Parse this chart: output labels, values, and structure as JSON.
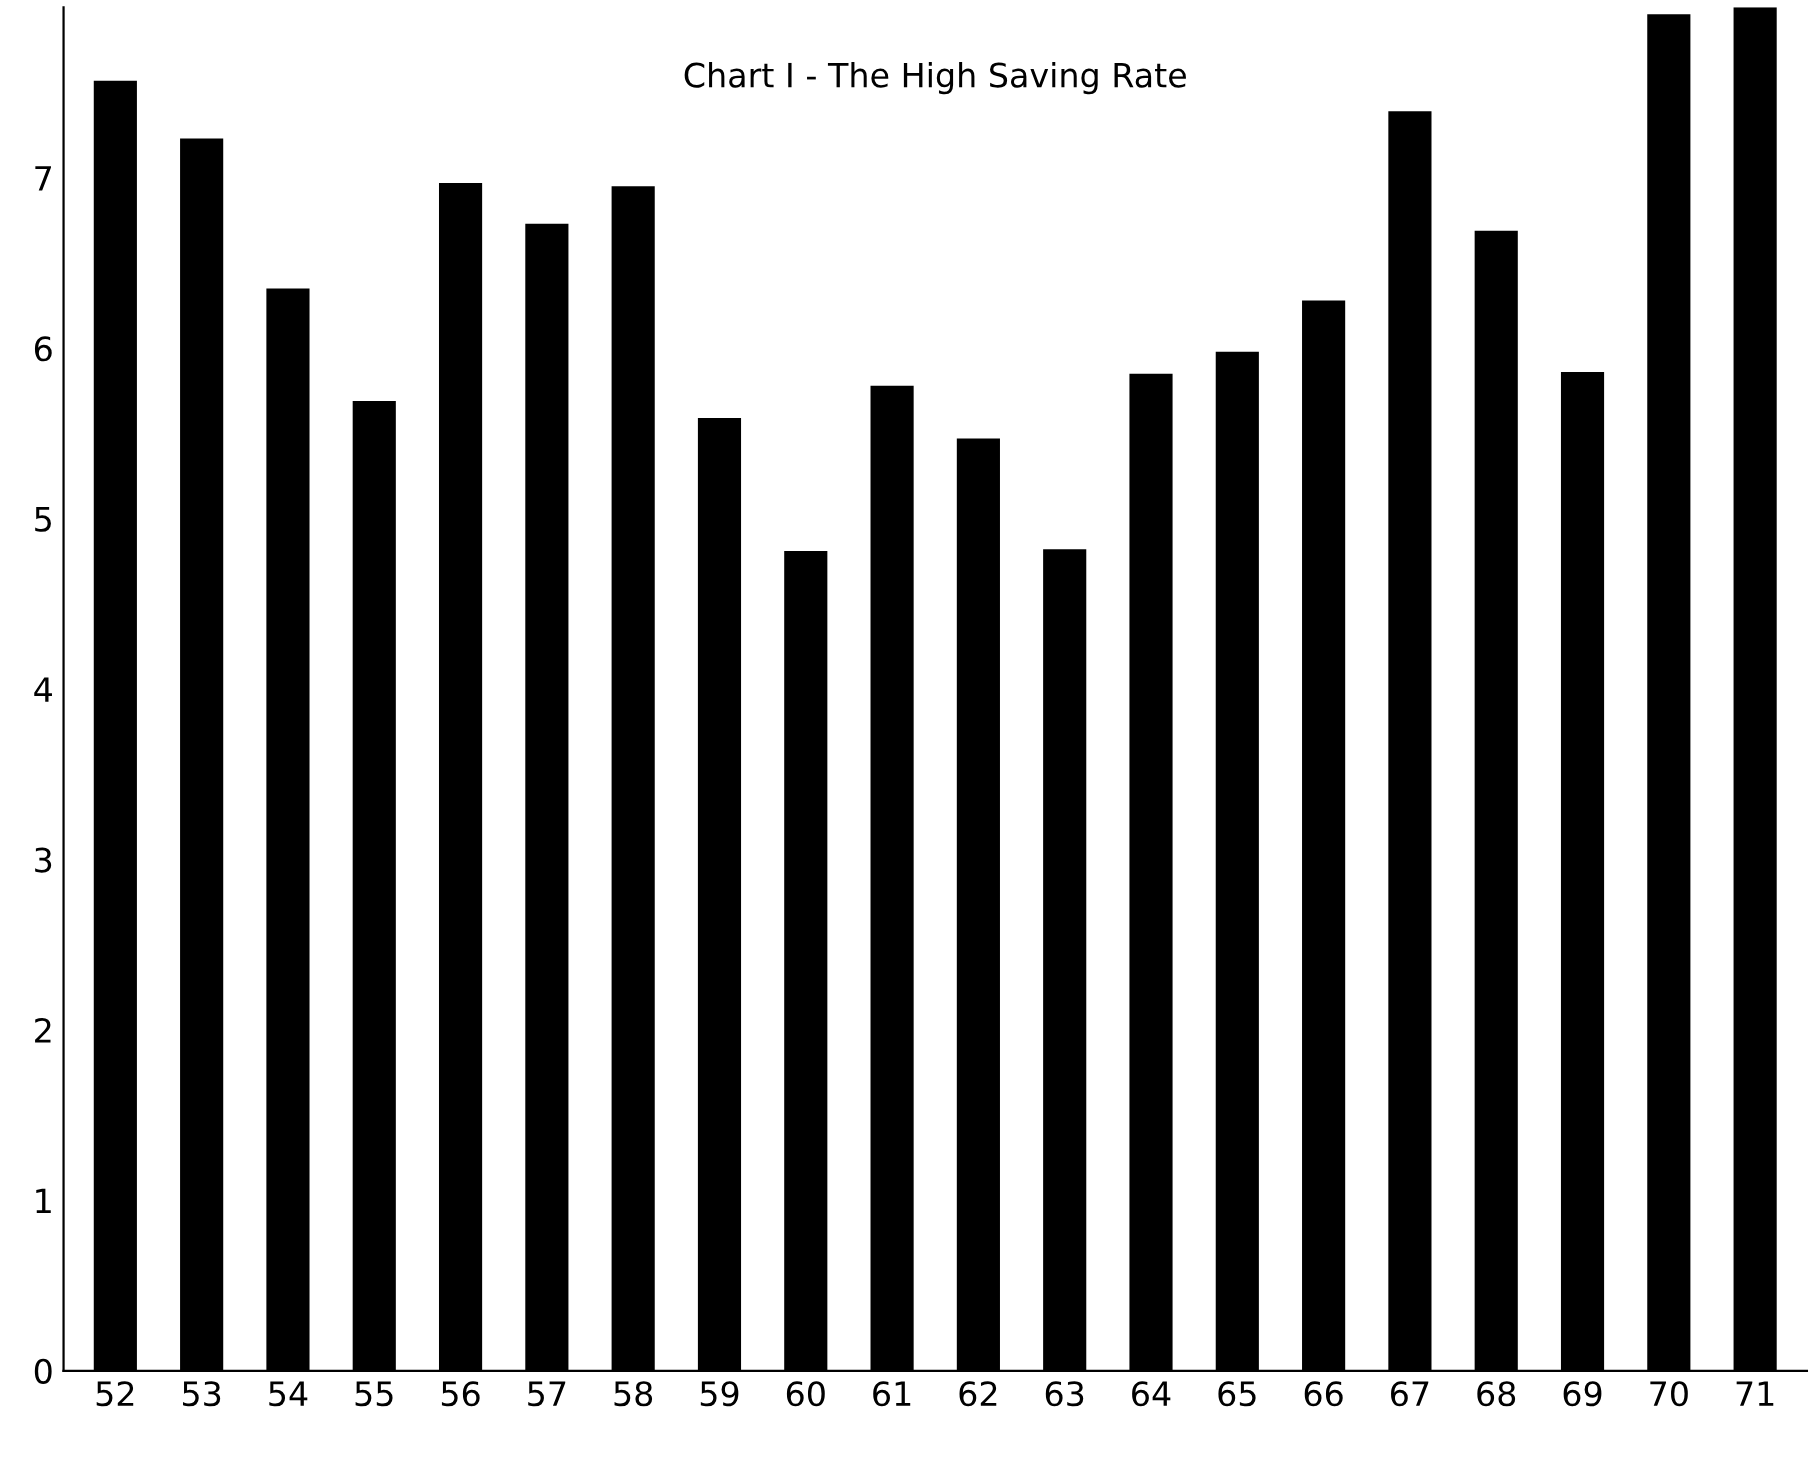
{
  "chart_data": {
    "type": "bar",
    "title": "Chart I - The High Saving Rate",
    "categories": [
      "52",
      "53",
      "54",
      "55",
      "56",
      "57",
      "58",
      "59",
      "60",
      "61",
      "62",
      "63",
      "64",
      "65",
      "66",
      "67",
      "68",
      "69",
      "70",
      "71"
    ],
    "values": [
      7.57,
      7.23,
      6.35,
      5.69,
      6.97,
      6.73,
      6.95,
      5.59,
      4.81,
      5.78,
      5.47,
      4.82,
      5.85,
      5.98,
      6.28,
      7.39,
      6.69,
      5.86,
      7.96,
      8.0
    ],
    "color": "#000000",
    "ylim": [
      0,
      8.0
    ],
    "yticks": [
      0,
      1,
      2,
      3,
      4,
      5,
      6,
      7
    ],
    "grid": false,
    "legend": false
  }
}
